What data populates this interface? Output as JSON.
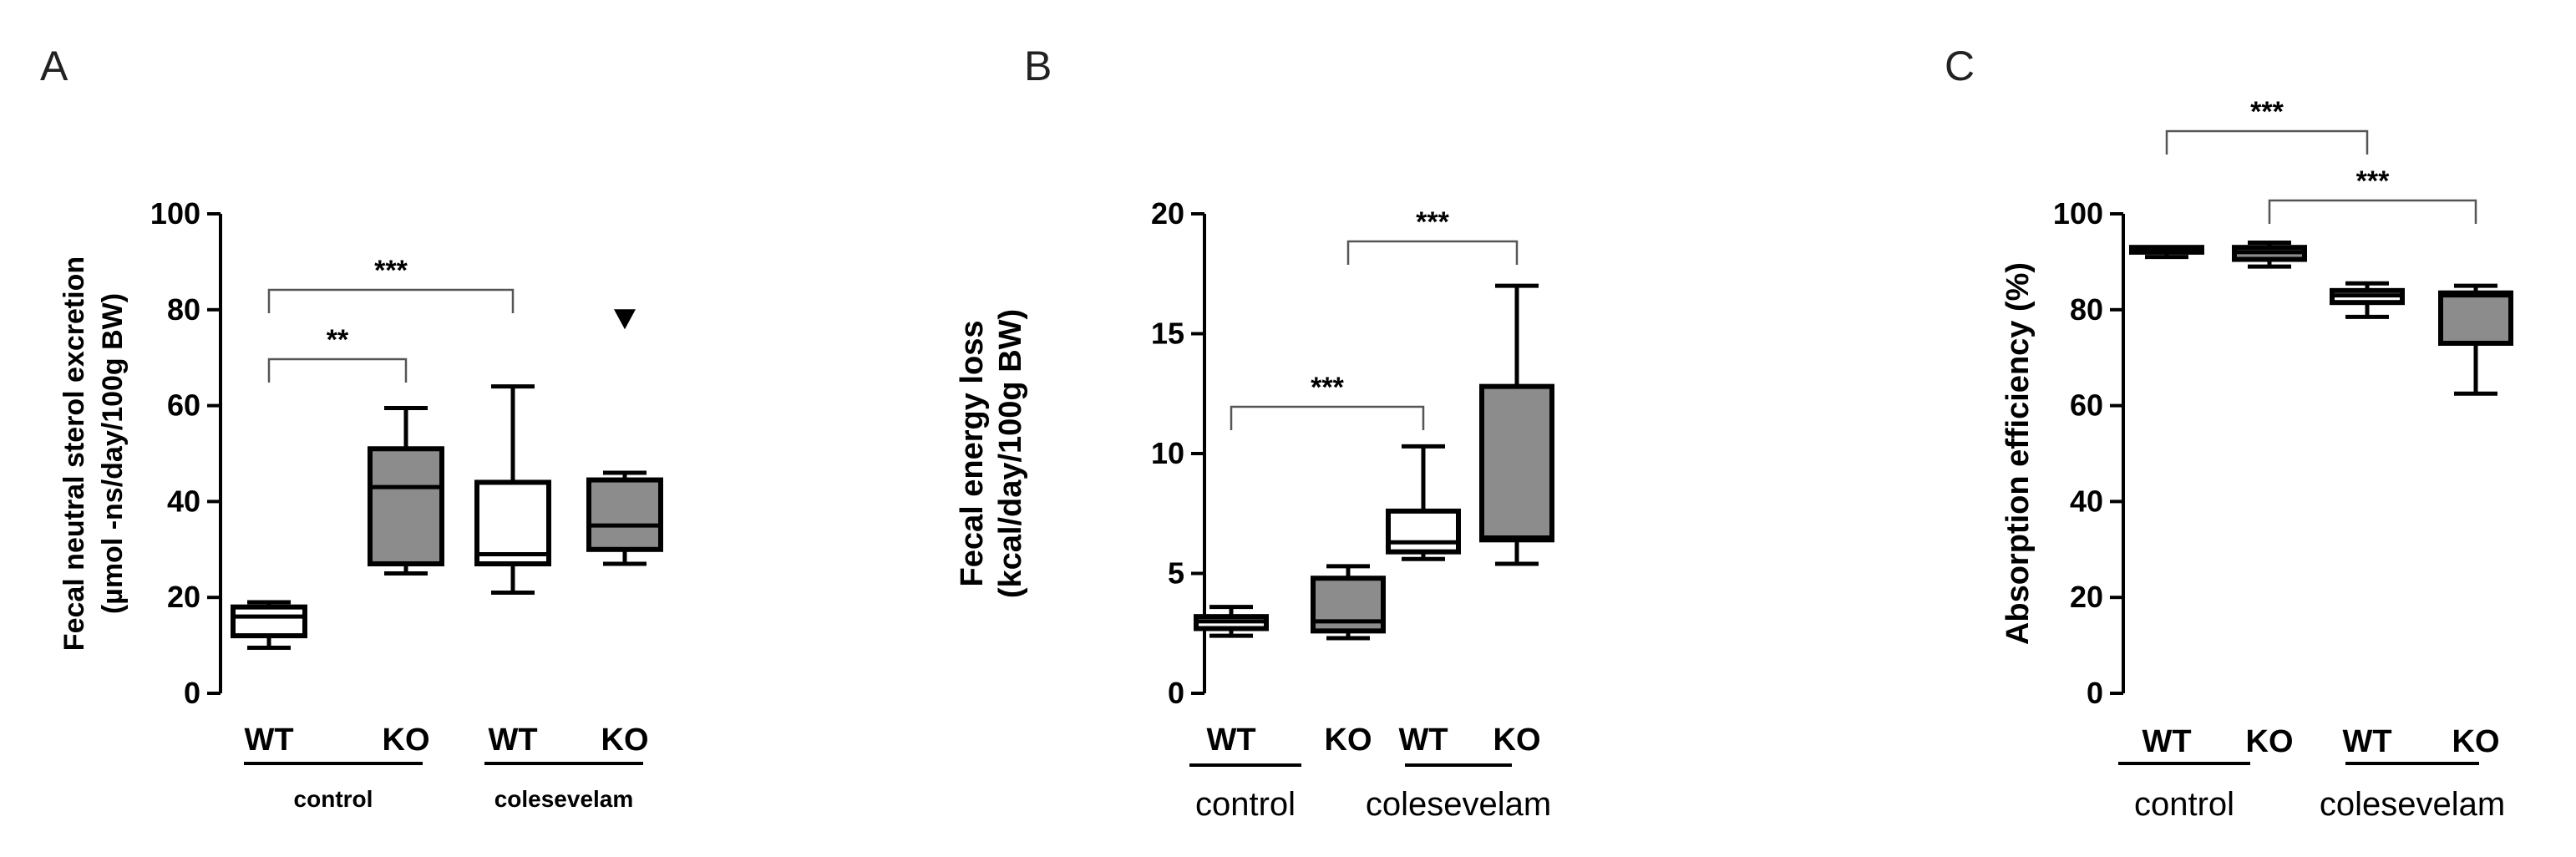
{
  "chart_data": [
    {
      "type": "boxplot",
      "panel_label": "A",
      "ylabel_lines": [
        "Fecal neutral sterol excretion",
        "(µmol -ns/day/100g BW)"
      ],
      "ylim": [
        0,
        100
      ],
      "yticks": [
        0,
        20,
        40,
        60,
        80,
        100
      ],
      "categories": [
        "WT",
        "KO",
        "WT",
        "KO"
      ],
      "groups": [
        {
          "label": "control",
          "members": [
            0,
            1
          ]
        },
        {
          "label": "colesevelam",
          "members": [
            2,
            3
          ]
        }
      ],
      "group_label_style": "small-bold",
      "boxes": [
        {
          "min": 9.5,
          "q1": 12,
          "median": 16,
          "q3": 18,
          "max": 19,
          "fill": "#ffffff"
        },
        {
          "min": 25,
          "q1": 27,
          "median": 43,
          "q3": 51,
          "max": 59.5,
          "fill": "#8c8c8c"
        },
        {
          "min": 21,
          "q1": 27,
          "median": 29,
          "q3": 44,
          "max": 64,
          "fill": "#ffffff"
        },
        {
          "min": 27,
          "q1": 30,
          "median": 35,
          "q3": 44.5,
          "max": 46,
          "fill": "#8c8c8c"
        }
      ],
      "outliers": [
        {
          "category": 3,
          "value": 78,
          "marker": "triangle-down"
        }
      ],
      "significance": [
        {
          "from": 0,
          "to": 1,
          "label": "**"
        },
        {
          "from": 0,
          "to": 2,
          "label": "***"
        }
      ]
    },
    {
      "type": "boxplot",
      "panel_label": "B",
      "ylabel_lines": [
        "Fecal energy loss",
        "(kcal/day/100g BW)"
      ],
      "ylim": [
        0,
        20
      ],
      "yticks": [
        0,
        5,
        10,
        15,
        20
      ],
      "categories": [
        "WT",
        "KO",
        "WT",
        "KO"
      ],
      "groups": [
        {
          "label": "control",
          "members": [
            0,
            1
          ]
        },
        {
          "label": "colesevelam",
          "members": [
            2,
            3
          ]
        }
      ],
      "group_label_style": "normal",
      "boxes": [
        {
          "min": 2.4,
          "q1": 2.7,
          "median": 3.0,
          "q3": 3.2,
          "max": 3.6,
          "fill": "#ffffff"
        },
        {
          "min": 2.3,
          "q1": 2.6,
          "median": 3.0,
          "q3": 4.8,
          "max": 5.3,
          "fill": "#8c8c8c"
        },
        {
          "min": 5.6,
          "q1": 5.9,
          "median": 6.3,
          "q3": 7.6,
          "max": 10.3,
          "fill": "#ffffff"
        },
        {
          "min": 5.4,
          "q1": 6.4,
          "median": 6.5,
          "q3": 12.8,
          "max": 17.0,
          "fill": "#8c8c8c"
        }
      ],
      "outliers": [],
      "significance": [
        {
          "from": 0,
          "to": 2,
          "label": "***"
        },
        {
          "from": 1,
          "to": 3,
          "label": "***"
        }
      ]
    },
    {
      "type": "boxplot",
      "panel_label": "C",
      "ylabel_lines": [
        "Absorption efficiency (%)"
      ],
      "ylim": [
        0,
        100
      ],
      "yticks": [
        0,
        20,
        40,
        60,
        80,
        100
      ],
      "categories": [
        "WT",
        "KO",
        "WT",
        "KO"
      ],
      "groups": [
        {
          "label": "control",
          "members": [
            0,
            1
          ]
        },
        {
          "label": "colesevelam",
          "members": [
            2,
            3
          ]
        }
      ],
      "group_label_style": "normal",
      "boxes": [
        {
          "min": 91,
          "q1": 92,
          "median": 92.5,
          "q3": 93,
          "max": 93,
          "fill": "#ffffff"
        },
        {
          "min": 89,
          "q1": 90.5,
          "median": 92,
          "q3": 93,
          "max": 94,
          "fill": "#8c8c8c"
        },
        {
          "min": 78.5,
          "q1": 81.5,
          "median": 83,
          "q3": 84,
          "max": 85.5,
          "fill": "#ffffff"
        },
        {
          "min": 62.5,
          "q1": 73,
          "median": 83,
          "q3": 83.5,
          "max": 85,
          "fill": "#8c8c8c"
        }
      ],
      "outliers": [],
      "significance": [
        {
          "from": 0,
          "to": 2,
          "label": "***"
        },
        {
          "from": 1,
          "to": 3,
          "label": "***"
        }
      ]
    }
  ]
}
